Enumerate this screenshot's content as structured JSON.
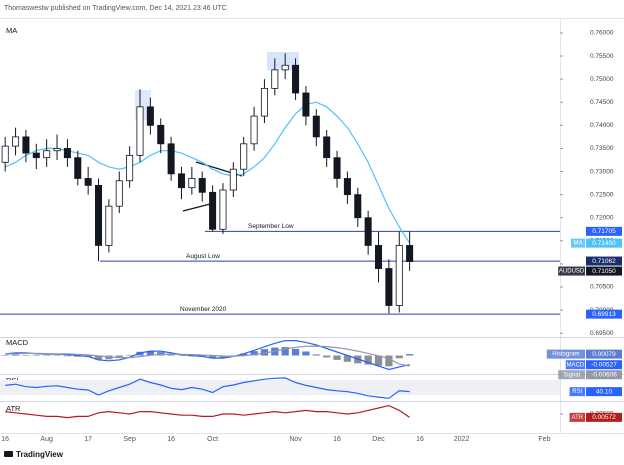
{
  "header": "Thomaswestw published on TradingView.com, Dec 14, 2021 23:46 UTC",
  "footer": "TradingView",
  "chart_data": [
    {
      "type": "candlestick",
      "title": "MA",
      "categories": [
        "16",
        null,
        null,
        null,
        "Aug",
        null,
        null,
        null,
        "17",
        null,
        null,
        null,
        "Sep",
        null,
        null,
        null,
        "16",
        null,
        null,
        null,
        "Oct",
        null,
        null,
        null,
        null,
        null,
        null,
        null,
        "Nov",
        null,
        null,
        null,
        "16",
        null,
        null,
        null,
        "Dec",
        null,
        null,
        null,
        "16",
        null,
        null,
        null,
        "2022",
        null,
        null,
        null,
        null,
        null,
        null,
        null,
        "Feb",
        null
      ],
      "open": [
        0.732,
        0.7355,
        0.7375,
        0.734,
        0.733,
        0.7345,
        0.735,
        0.733,
        0.7285,
        0.727,
        0.714,
        0.7225,
        0.728,
        0.7335,
        0.744,
        0.74,
        0.736,
        0.7295,
        0.7265,
        0.7285,
        0.7255,
        0.7175,
        0.726,
        0.7305,
        0.736,
        0.742,
        0.748,
        0.752,
        0.753,
        0.747,
        0.742,
        0.7375,
        0.733,
        0.7285,
        0.725,
        0.72,
        0.714,
        0.709,
        0.701,
        0.714,
        null,
        null,
        null,
        null,
        null,
        null,
        null,
        null,
        null,
        null,
        null,
        null,
        null,
        null
      ],
      "high": [
        0.7375,
        0.7395,
        0.739,
        0.736,
        0.737,
        0.738,
        0.737,
        0.7345,
        0.731,
        0.7285,
        0.724,
        0.73,
        0.7355,
        0.7478,
        0.746,
        0.7415,
        0.7375,
        0.731,
        0.731,
        0.73,
        0.727,
        0.7275,
        0.732,
        0.7375,
        0.744,
        0.75,
        0.7545,
        0.7556,
        0.7545,
        0.7485,
        0.7435,
        0.739,
        0.7345,
        0.73,
        0.7265,
        0.7215,
        0.717,
        0.711,
        0.717,
        0.717,
        null,
        null,
        null,
        null,
        null,
        null,
        null,
        null,
        null,
        null,
        null,
        null,
        null,
        null
      ],
      "low": [
        0.73,
        0.7335,
        0.732,
        0.7305,
        0.731,
        0.7325,
        0.731,
        0.727,
        0.725,
        0.7106,
        0.7125,
        0.721,
        0.7265,
        0.732,
        0.738,
        0.734,
        0.728,
        0.724,
        0.725,
        0.7235,
        0.717,
        0.7165,
        0.7245,
        0.729,
        0.7345,
        0.7405,
        0.7465,
        0.75,
        0.7455,
        0.74,
        0.7355,
        0.731,
        0.7265,
        0.723,
        0.718,
        0.712,
        0.706,
        0.6993,
        0.6995,
        0.7085,
        null,
        null,
        null,
        null,
        null,
        null,
        null,
        null,
        null,
        null,
        null,
        null,
        null,
        null
      ],
      "close": [
        0.7355,
        0.7375,
        0.734,
        0.733,
        0.7345,
        0.735,
        0.733,
        0.7285,
        0.727,
        0.714,
        0.7225,
        0.728,
        0.7335,
        0.744,
        0.74,
        0.736,
        0.7295,
        0.7265,
        0.7285,
        0.7255,
        0.7175,
        0.726,
        0.7305,
        0.736,
        0.742,
        0.748,
        0.752,
        0.753,
        0.747,
        0.742,
        0.7375,
        0.733,
        0.7285,
        0.725,
        0.72,
        0.714,
        0.709,
        0.701,
        0.714,
        0.7105,
        null,
        null,
        null,
        null,
        null,
        null,
        null,
        null,
        null,
        null,
        null,
        null,
        null,
        null
      ],
      "up_color": "#ffffff",
      "down_color": "#131722",
      "series": [
        {
          "name": "MA",
          "color": "#4fc3f7",
          "values": [
            0.731,
            0.732,
            0.7335,
            0.7345,
            0.735,
            0.735,
            0.7345,
            0.734,
            0.7335,
            0.732,
            0.731,
            0.7305,
            0.731,
            0.732,
            0.7335,
            0.7345,
            0.7345,
            0.734,
            0.733,
            0.732,
            0.7305,
            0.7295,
            0.729,
            0.7295,
            0.731,
            0.733,
            0.736,
            0.7395,
            0.7425,
            0.7445,
            0.745,
            0.744,
            0.742,
            0.7395,
            0.736,
            0.732,
            0.727,
            0.722,
            0.718,
            0.7145,
            null,
            null,
            null,
            null,
            null,
            null,
            null,
            null,
            null,
            null,
            null,
            null,
            null,
            null
          ]
        }
      ],
      "ylim": [
        0.6944,
        0.7628
      ],
      "yticks": [
        {
          "value": 0.76,
          "label": "0.76000"
        },
        {
          "value": 0.755,
          "label": "0.75500"
        },
        {
          "value": 0.75,
          "label": "0.75000"
        },
        {
          "value": 0.745,
          "label": "0.74500"
        },
        {
          "value": 0.74,
          "label": "0.74000"
        },
        {
          "value": 0.735,
          "label": "0.73500"
        },
        {
          "value": 0.73,
          "label": "0.73000"
        },
        {
          "value": 0.725,
          "label": "0.72500"
        },
        {
          "value": 0.72,
          "label": "0.72000"
        },
        {
          "value": 0.715,
          "label": "0.71500"
        },
        {
          "value": 0.71,
          "label": "0.71000"
        },
        {
          "value": 0.705,
          "label": "0.70500"
        },
        {
          "value": 0.7,
          "label": "0.70000"
        },
        {
          "value": 0.695,
          "label": "0.69500"
        }
      ],
      "levels": [
        {
          "name": "September Low",
          "value": 0.71705,
          "value_label": "0.71705",
          "color": "#2962ff"
        },
        {
          "name": "August Low",
          "value": 0.71062,
          "value_label": "0.71062",
          "color": "#1c2e6e"
        },
        {
          "name": "November 2020",
          "value": 0.69913,
          "value_label": "0.69913",
          "color": "#2962ff"
        }
      ],
      "price_labels": [
        {
          "name": "MA",
          "value": 0.7145,
          "value_label": "0.71450",
          "color": "#4fc3f7"
        },
        {
          "name": "AUDUSD",
          "value": 0.7105,
          "value_label": "0.71050",
          "color": "#131722"
        }
      ]
    },
    {
      "type": "line",
      "title": "MACD",
      "ylim": [
        -0.01,
        0.01
      ],
      "series": [
        {
          "name": "Histogram",
          "type": "bar",
          "color": "#5b7dd6",
          "negative_color": "#8a8f99",
          "values": [
            0.0002,
            0.0005,
            0.0003,
            -0.0002,
            -0.0003,
            -0.0002,
            -0.0004,
            -0.0007,
            -0.0009,
            -0.0023,
            -0.0022,
            -0.0013,
            0.0002,
            0.0021,
            0.0024,
            0.0019,
            0.0007,
            -0.0002,
            -0.0005,
            -0.0008,
            -0.0015,
            -0.0012,
            -0.0001,
            0.0011,
            0.0025,
            0.0036,
            0.0045,
            0.0048,
            0.0038,
            0.0023,
            0.0006,
            -0.0011,
            -0.0025,
            -0.0036,
            -0.0045,
            -0.0052,
            -0.0058,
            -0.0062,
            -0.0016,
            0.00079,
            null,
            null,
            null,
            null,
            null,
            null,
            null,
            null,
            null,
            null,
            null,
            null,
            null,
            null
          ]
        },
        {
          "name": "MACD",
          "type": "line",
          "color": "#2962ff",
          "values": [
            0.001,
            0.0015,
            0.0015,
            0.001,
            0.0008,
            0.0008,
            0.0005,
            0,
            -0.0005,
            -0.0025,
            -0.003,
            -0.0025,
            -0.001,
            0.0015,
            0.0025,
            0.0025,
            0.0015,
            0.0005,
            0,
            -0.0005,
            -0.0015,
            -0.0015,
            -0.0005,
            0.001,
            0.003,
            0.005,
            0.007,
            0.0085,
            0.0085,
            0.0075,
            0.006,
            0.004,
            0.002,
            0,
            -0.002,
            -0.004,
            -0.006,
            -0.008,
            -0.0065,
            -0.00527,
            null,
            null,
            null,
            null,
            null,
            null,
            null,
            null,
            null,
            null,
            null,
            null,
            null,
            null
          ]
        },
        {
          "name": "Signal",
          "type": "line",
          "color": "#9098a8",
          "values": [
            0.0008,
            0.001,
            0.0012,
            0.0012,
            0.0011,
            0.001,
            0.0009,
            0.0007,
            0.0004,
            -0.0002,
            -0.0008,
            -0.0012,
            -0.0012,
            -0.0006,
            0.0001,
            0.0006,
            0.0008,
            0.0007,
            0.0005,
            0.0003,
            0,
            -0.0003,
            -0.0004,
            -0.0001,
            0.0005,
            0.0014,
            0.0025,
            0.0037,
            0.0047,
            0.0052,
            0.0054,
            0.0051,
            0.0045,
            0.0036,
            0.0025,
            0.0012,
            -0.0002,
            -0.0018,
            -0.0049,
            -0.00606,
            null,
            null,
            null,
            null,
            null,
            null,
            null,
            null,
            null,
            null,
            null,
            null,
            null,
            null
          ]
        }
      ],
      "price_labels": [
        {
          "name": "Histogram",
          "value": 0.00079,
          "value_label": "0.00079",
          "color": "#5b7dd6"
        },
        {
          "name": "MACD",
          "value": -0.00527,
          "value_label": "-0.00527",
          "color": "#2962ff"
        },
        {
          "name": "Signal",
          "value": -0.00606,
          "value_label": "-0.00606",
          "color": "#9098a8"
        }
      ]
    },
    {
      "type": "line",
      "title": "RSI",
      "ylim": [
        20,
        80
      ],
      "series": [
        {
          "name": "RSI",
          "type": "line",
          "color": "#2962ff",
          "values": [
            55,
            58,
            52,
            50,
            53,
            54,
            50,
            46,
            44,
            32,
            42,
            50,
            58,
            70,
            62,
            56,
            48,
            45,
            50,
            46,
            38,
            52,
            56,
            62,
            66,
            70,
            72,
            73,
            62,
            55,
            50,
            45,
            42,
            40,
            36,
            30,
            27,
            24,
            42,
            40.1,
            null,
            null,
            null,
            null,
            null,
            null,
            null,
            null,
            null,
            null,
            null,
            null,
            null,
            null
          ]
        }
      ],
      "price_labels": [
        {
          "name": "RSI",
          "value": 40.1,
          "value_label": "40.10",
          "color": "#2962ff"
        }
      ]
    },
    {
      "type": "line",
      "title": "ATR",
      "ylim": [
        0.0045,
        0.007
      ],
      "yticks": [
        {
          "value": 0.006,
          "label": "0.00600"
        }
      ],
      "series": [
        {
          "name": "ATR",
          "type": "line",
          "color": "#b71c1c",
          "values": [
            0.0062,
            0.0061,
            0.006,
            0.0059,
            0.0058,
            0.0058,
            0.0057,
            0.0058,
            0.0058,
            0.0061,
            0.0062,
            0.0061,
            0.006,
            0.0062,
            0.0062,
            0.0061,
            0.006,
            0.0059,
            0.0059,
            0.0058,
            0.0058,
            0.006,
            0.006,
            0.0059,
            0.006,
            0.0061,
            0.0062,
            0.0061,
            0.0062,
            0.0063,
            0.0062,
            0.0062,
            0.0061,
            0.006,
            0.0061,
            0.0063,
            0.0065,
            0.0067,
            0.0063,
            0.00572,
            null,
            null,
            null,
            null,
            null,
            null,
            null,
            null,
            null,
            null,
            null,
            null,
            null,
            null
          ]
        }
      ],
      "price_labels": [
        {
          "name": "ATR",
          "value": 0.00572,
          "value_label": "0.00572",
          "color": "#b71c1c"
        }
      ]
    }
  ]
}
